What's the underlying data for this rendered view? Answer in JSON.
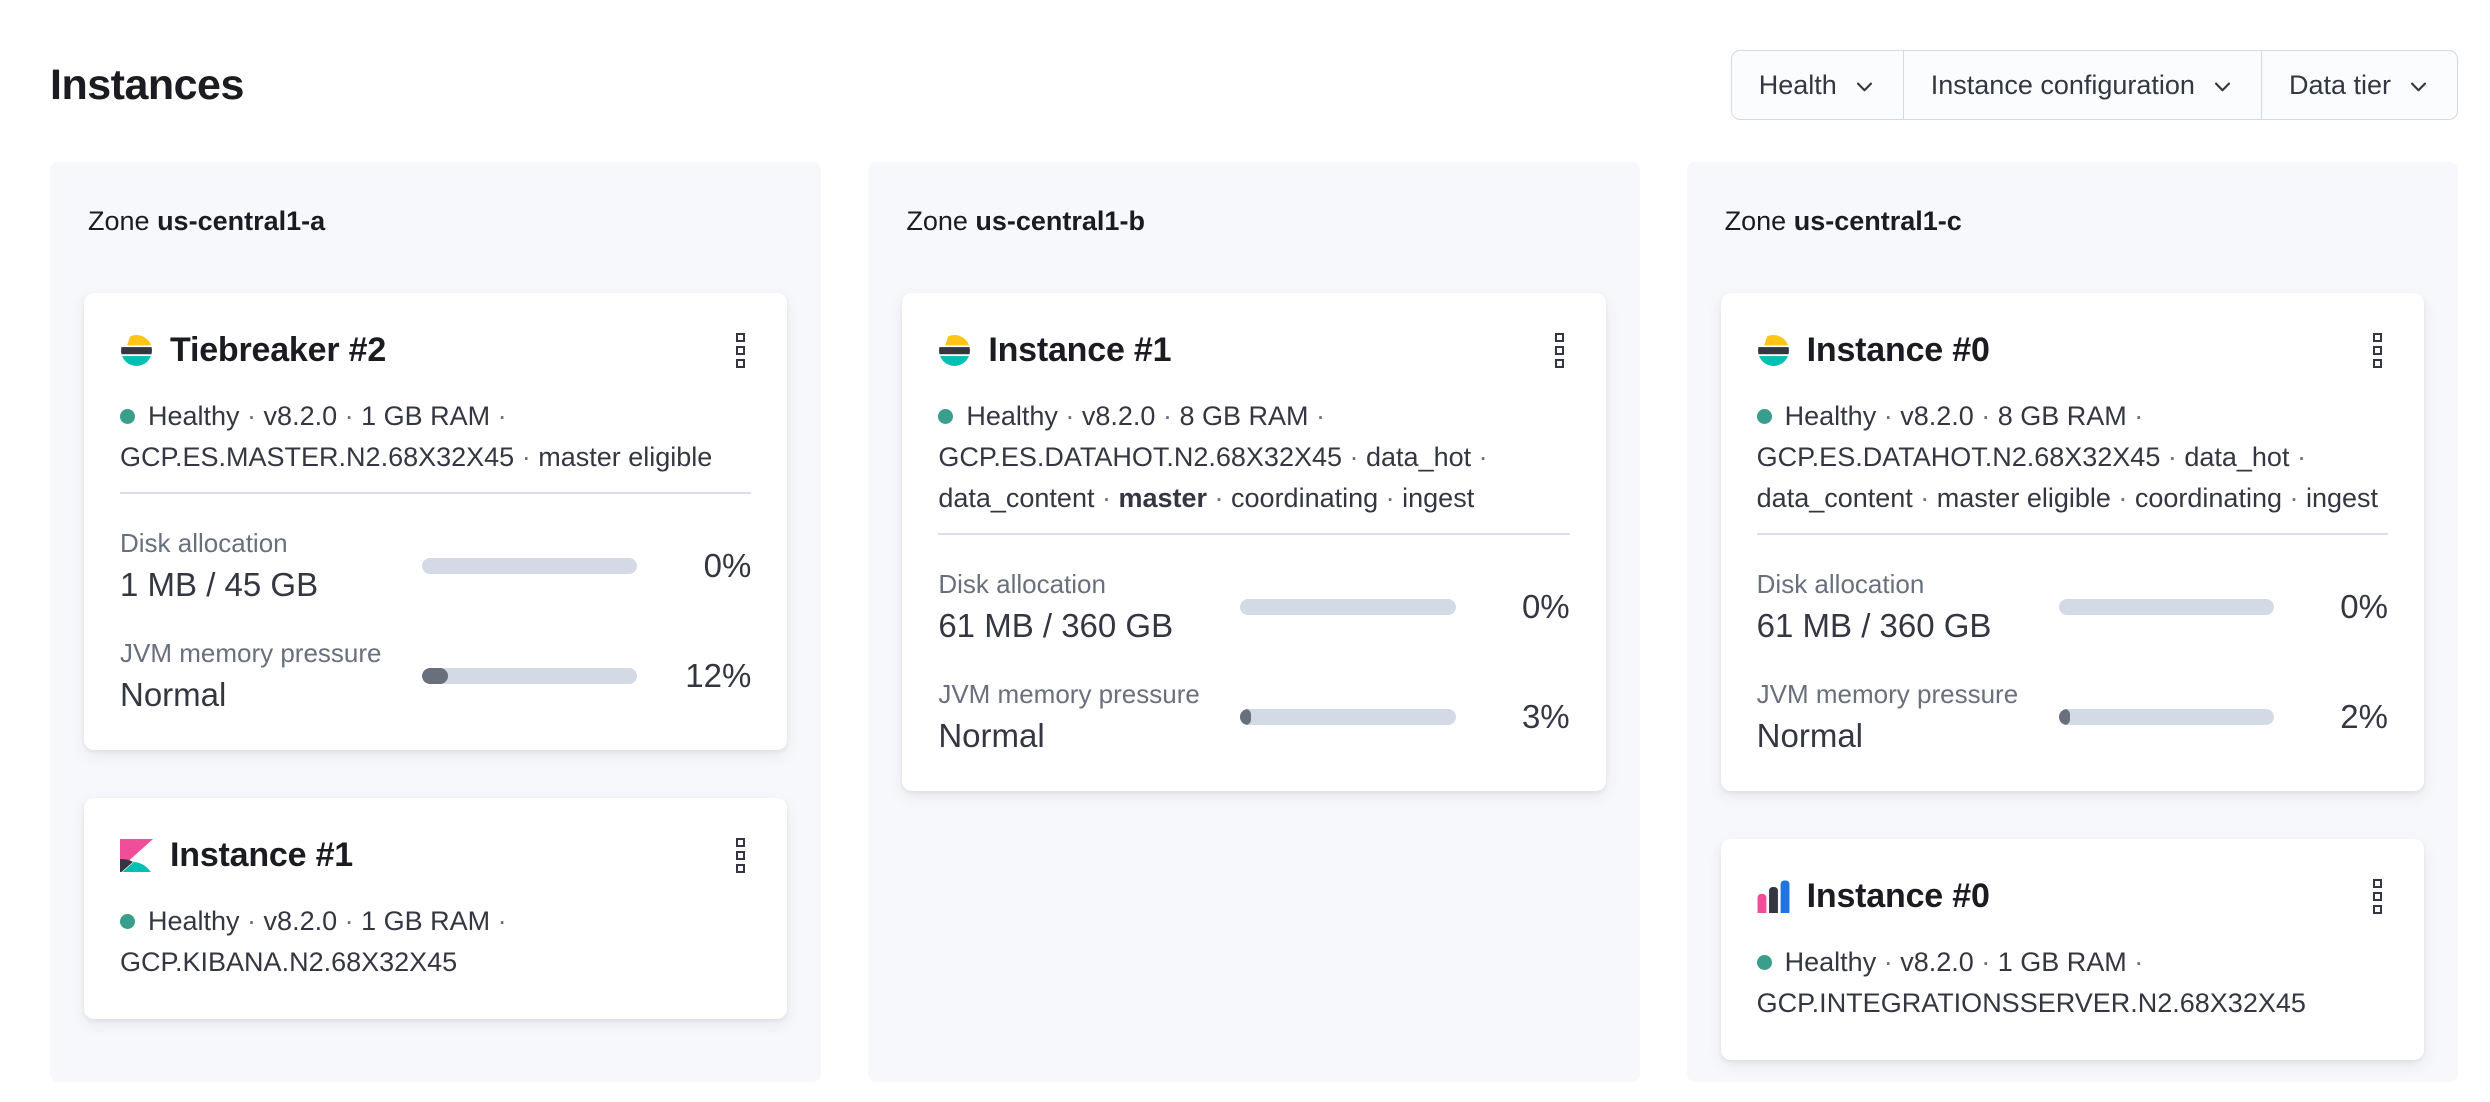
{
  "page": {
    "title": "Instances"
  },
  "filters": [
    {
      "label": "Health"
    },
    {
      "label": "Instance configuration"
    },
    {
      "label": "Data tier"
    }
  ],
  "colors": {
    "health_dot": "#3a9e8c",
    "bar_track": "#d3dae6",
    "bar_fill": "#69707d",
    "logo_yellow": "#fec514",
    "logo_dark": "#343741",
    "logo_teal": "#00bfb3",
    "logo_pink": "#f04e98",
    "logo_blue": "#2173e2"
  },
  "zones": [
    {
      "label": "Zone",
      "name": "us-central1-a",
      "cards": [
        {
          "logo": "elasticsearch",
          "title": "Tiebreaker #2",
          "meta_lines": [
            {
              "has_status_dot": true,
              "trailing_separator": true,
              "parts": [
                {
                  "text": "Healthy"
                },
                {
                  "text": "v8.2.0"
                },
                {
                  "text": "1 GB RAM"
                }
              ]
            },
            {
              "has_status_dot": false,
              "trailing_separator": false,
              "parts": [
                {
                  "text": "GCP.ES.MASTER.N2.68X32X45"
                },
                {
                  "text": "master eligible"
                }
              ]
            }
          ],
          "metrics": [
            {
              "label": "Disk allocation",
              "value": "1 MB / 45 GB",
              "percent_label": "0%",
              "percent": 0
            },
            {
              "label": "JVM memory pressure",
              "value": "Normal",
              "percent_label": "12%",
              "percent": 12
            }
          ]
        },
        {
          "logo": "kibana",
          "title": "Instance #1",
          "meta_lines": [
            {
              "has_status_dot": true,
              "trailing_separator": true,
              "parts": [
                {
                  "text": "Healthy"
                },
                {
                  "text": "v8.2.0"
                },
                {
                  "text": "1 GB RAM"
                }
              ]
            },
            {
              "has_status_dot": false,
              "trailing_separator": false,
              "parts": [
                {
                  "text": "GCP.KIBANA.N2.68X32X45"
                }
              ]
            }
          ],
          "metrics": []
        }
      ]
    },
    {
      "label": "Zone",
      "name": "us-central1-b",
      "cards": [
        {
          "logo": "elasticsearch",
          "title": "Instance #1",
          "meta_lines": [
            {
              "has_status_dot": true,
              "trailing_separator": true,
              "parts": [
                {
                  "text": "Healthy"
                },
                {
                  "text": "v8.2.0"
                },
                {
                  "text": "8 GB RAM"
                }
              ]
            },
            {
              "has_status_dot": false,
              "trailing_separator": true,
              "parts": [
                {
                  "text": "GCP.ES.DATAHOT.N2.68X32X45"
                },
                {
                  "text": "data_hot"
                }
              ]
            },
            {
              "has_status_dot": false,
              "trailing_separator": false,
              "parts": [
                {
                  "text": "data_content"
                },
                {
                  "text": "master",
                  "bold": true
                },
                {
                  "text": "coordinating"
                },
                {
                  "text": "ingest"
                }
              ]
            }
          ],
          "metrics": [
            {
              "label": "Disk allocation",
              "value": "61 MB / 360 GB",
              "percent_label": "0%",
              "percent": 0
            },
            {
              "label": "JVM memory pressure",
              "value": "Normal",
              "percent_label": "3%",
              "percent": 3
            }
          ]
        }
      ]
    },
    {
      "label": "Zone",
      "name": "us-central1-c",
      "cards": [
        {
          "logo": "elasticsearch",
          "title": "Instance #0",
          "meta_lines": [
            {
              "has_status_dot": true,
              "trailing_separator": true,
              "parts": [
                {
                  "text": "Healthy"
                },
                {
                  "text": "v8.2.0"
                },
                {
                  "text": "8 GB RAM"
                }
              ]
            },
            {
              "has_status_dot": false,
              "trailing_separator": true,
              "parts": [
                {
                  "text": "GCP.ES.DATAHOT.N2.68X32X45"
                },
                {
                  "text": "data_hot"
                }
              ]
            },
            {
              "has_status_dot": false,
              "trailing_separator": false,
              "parts": [
                {
                  "text": "data_content"
                },
                {
                  "text": "master eligible"
                },
                {
                  "text": "coordinating"
                },
                {
                  "text": "ingest"
                }
              ]
            }
          ],
          "metrics": [
            {
              "label": "Disk allocation",
              "value": "61 MB / 360 GB",
              "percent_label": "0%",
              "percent": 0
            },
            {
              "label": "JVM memory pressure",
              "value": "Normal",
              "percent_label": "2%",
              "percent": 2
            }
          ]
        },
        {
          "logo": "integrations-server",
          "title": "Instance #0",
          "meta_lines": [
            {
              "has_status_dot": true,
              "trailing_separator": true,
              "parts": [
                {
                  "text": "Healthy"
                },
                {
                  "text": "v8.2.0"
                },
                {
                  "text": "1 GB RAM"
                }
              ]
            },
            {
              "has_status_dot": false,
              "trailing_separator": false,
              "parts": [
                {
                  "text": "GCP.INTEGRATIONSSERVER.N2.68X32X45"
                }
              ]
            }
          ],
          "metrics": []
        }
      ]
    }
  ]
}
